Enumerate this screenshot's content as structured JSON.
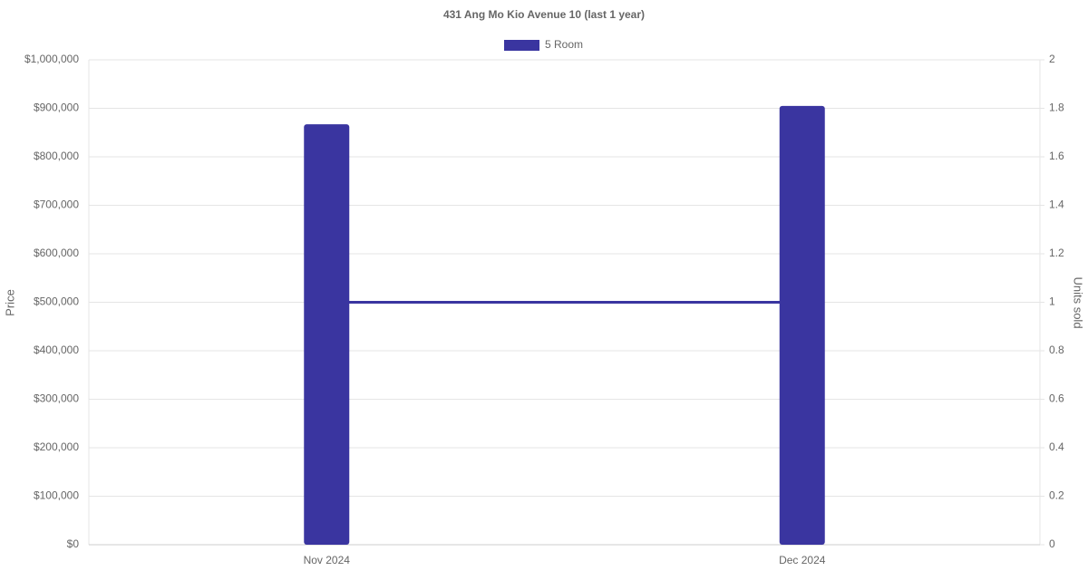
{
  "chart_data": {
    "type": "bar",
    "title": "431 Ang Mo Kio Avenue 10 (last 1 year)",
    "categories": [
      "Nov 2024",
      "Dec 2024"
    ],
    "series": [
      {
        "name": "5 Room",
        "color": "#3a35a0",
        "type": "bar",
        "values": [
          867000,
          905000
        ]
      },
      {
        "color": "#3a35a0",
        "type": "line",
        "axis": "y2",
        "values": [
          1,
          1
        ]
      }
    ],
    "ylabel": "Price",
    "y2label": "Units sold",
    "ylim": [
      0,
      1000000
    ],
    "yticks": [
      {
        "value": 0,
        "label": "$0"
      },
      {
        "value": 100000,
        "label": "$100,000"
      },
      {
        "value": 200000,
        "label": "$200,000"
      },
      {
        "value": 300000,
        "label": "$300,000"
      },
      {
        "value": 400000,
        "label": "$400,000"
      },
      {
        "value": 500000,
        "label": "$500,000"
      },
      {
        "value": 600000,
        "label": "$600,000"
      },
      {
        "value": 700000,
        "label": "$700,000"
      },
      {
        "value": 800000,
        "label": "$800,000"
      },
      {
        "value": 900000,
        "label": "$900,000"
      },
      {
        "value": 1000000,
        "label": "$1,000,000"
      }
    ],
    "y2lim": [
      0,
      2
    ],
    "y2ticks": [
      0,
      0.2,
      0.4,
      0.6,
      0.8,
      1,
      1.2,
      1.4,
      1.6,
      1.8,
      2
    ],
    "grid": true,
    "legend": "top"
  }
}
